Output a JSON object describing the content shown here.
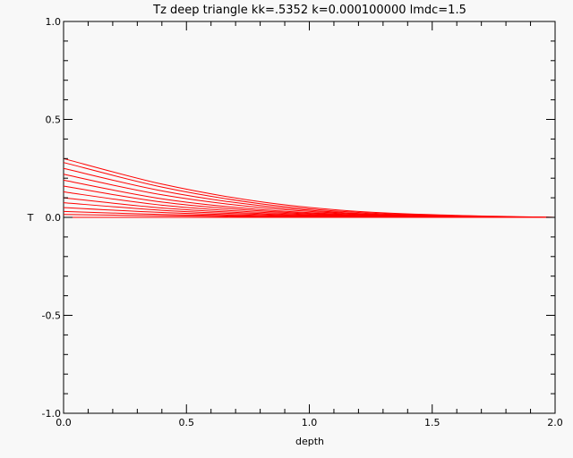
{
  "chart_data": {
    "type": "line",
    "title": "Tz deep triangle kk=.5352 k=0.000100000 lmdc=1.5",
    "xlabel": "depth",
    "ylabel": "T",
    "xlim": [
      0.0,
      2.0
    ],
    "ylim": [
      -1.0,
      1.0
    ],
    "x_ticks": [
      "0.0",
      "0.5",
      "1.0",
      "1.5",
      "2.0"
    ],
    "y_ticks": [
      "1.0",
      "0.5",
      "0.0",
      "-0.5",
      "-1.0"
    ],
    "grid": false,
    "legend": "none",
    "line_color": "#ff0000",
    "series": [
      {
        "x": [
          0.0,
          0.4,
          0.8,
          1.2,
          1.6,
          2.0
        ],
        "y": [
          0.3,
          0.17,
          0.08,
          0.03,
          0.01,
          0.0
        ]
      },
      {
        "x": [
          0.0,
          0.4,
          0.8,
          1.2,
          1.6,
          2.0
        ],
        "y": [
          0.28,
          0.155,
          0.07,
          0.025,
          0.008,
          0.0
        ]
      },
      {
        "x": [
          0.0,
          0.4,
          0.8,
          1.2,
          1.6,
          2.0
        ],
        "y": [
          0.25,
          0.135,
          0.06,
          0.02,
          0.006,
          0.0
        ]
      },
      {
        "x": [
          0.0,
          0.4,
          0.8,
          1.2,
          1.6,
          2.0
        ],
        "y": [
          0.22,
          0.115,
          0.05,
          0.017,
          0.005,
          0.0
        ]
      },
      {
        "x": [
          0.0,
          0.4,
          0.8,
          1.2,
          1.6,
          2.0
        ],
        "y": [
          0.19,
          0.095,
          0.04,
          0.014,
          0.004,
          0.0
        ]
      },
      {
        "x": [
          0.0,
          0.4,
          0.8,
          1.2,
          1.6,
          2.0
        ],
        "y": [
          0.16,
          0.078,
          0.033,
          0.011,
          0.003,
          0.0
        ]
      },
      {
        "x": [
          0.0,
          0.4,
          0.8,
          1.2,
          1.6,
          2.0
        ],
        "y": [
          0.13,
          0.062,
          0.026,
          0.009,
          0.002,
          0.0
        ]
      },
      {
        "x": [
          0.0,
          0.4,
          0.8,
          1.2,
          1.6,
          2.0
        ],
        "y": [
          0.1,
          0.048,
          0.02,
          0.007,
          0.002,
          0.0
        ]
      },
      {
        "x": [
          0.0,
          0.4,
          0.8,
          1.2,
          1.6,
          2.0
        ],
        "y": [
          0.075,
          0.036,
          0.015,
          0.005,
          0.001,
          0.0
        ]
      },
      {
        "x": [
          0.0,
          0.4,
          0.8,
          1.2,
          1.6,
          2.0
        ],
        "y": [
          0.05,
          0.025,
          0.01,
          0.004,
          0.001,
          0.0
        ]
      },
      {
        "x": [
          0.0,
          0.4,
          0.8,
          1.2,
          1.6,
          2.0
        ],
        "y": [
          0.03,
          0.015,
          0.006,
          0.002,
          0.0,
          0.0
        ]
      },
      {
        "x": [
          0.0,
          0.4,
          0.8,
          1.2,
          1.6,
          2.0
        ],
        "y": [
          0.015,
          0.008,
          0.003,
          0.001,
          0.0,
          0.0
        ]
      },
      {
        "x": [
          0.0,
          0.4,
          0.8,
          1.2,
          1.6,
          2.0
        ],
        "y": [
          0.0,
          0.0,
          0.0,
          0.0,
          0.0,
          0.0
        ]
      }
    ]
  }
}
